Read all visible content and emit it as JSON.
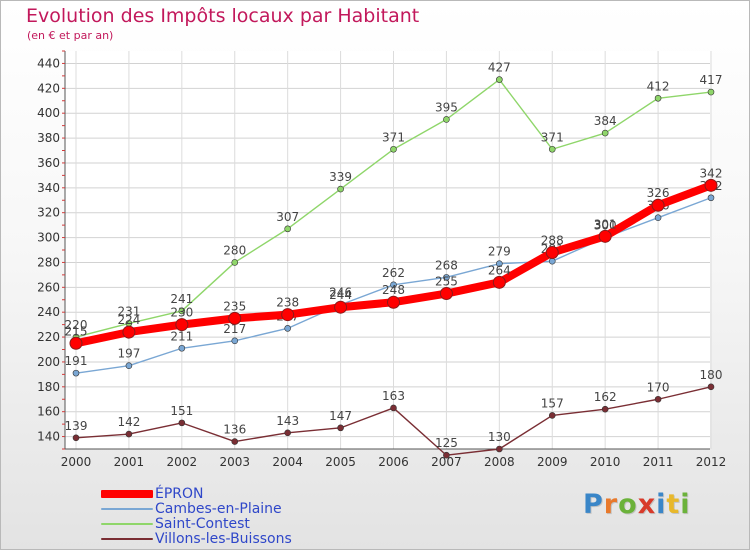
{
  "title": "Evolution des Impôts locaux par Habitant",
  "subtitle": "(en € et par an)",
  "brand": {
    "letters": [
      "P",
      "r",
      "o",
      "x",
      "i",
      "t",
      "i"
    ],
    "colors": [
      "#3a86c8",
      "#e8792b",
      "#6bb23a",
      "#d83a2a",
      "#3a86c8",
      "#e8b82b",
      "#6bb23a"
    ]
  },
  "chart_data": {
    "type": "line",
    "x": [
      "2000",
      "2001",
      "2002",
      "2003",
      "2004",
      "2005",
      "2006",
      "2007",
      "2008",
      "2009",
      "2010",
      "2011",
      "2012"
    ],
    "ylim": [
      130,
      450
    ],
    "yticks": [
      140,
      160,
      180,
      200,
      220,
      240,
      260,
      280,
      300,
      320,
      340,
      360,
      380,
      400,
      420,
      440
    ],
    "grid": true,
    "legend_position": "bottom-left",
    "series": [
      {
        "name": "Saint-Contest",
        "color": "#8fd66a",
        "values": [
          220,
          231,
          241,
          280,
          307,
          339,
          371,
          395,
          427,
          371,
          384,
          412,
          417
        ]
      },
      {
        "name": "Villons-les-Buissons",
        "color": "#7a2e34",
        "values": [
          139,
          142,
          151,
          136,
          143,
          147,
          163,
          125,
          130,
          157,
          162,
          170,
          180
        ]
      },
      {
        "name": "Cambes-en-Plaine",
        "color": "#7aa7d4",
        "values": [
          191,
          197,
          211,
          217,
          227,
          246,
          262,
          268,
          279,
          281,
          300,
          316,
          332
        ]
      },
      {
        "name": "ÉPRON",
        "color": "#ff0000",
        "values": [
          215,
          224,
          230,
          235,
          238,
          244,
          248,
          255,
          264,
          288,
          301,
          326,
          342
        ]
      }
    ]
  }
}
